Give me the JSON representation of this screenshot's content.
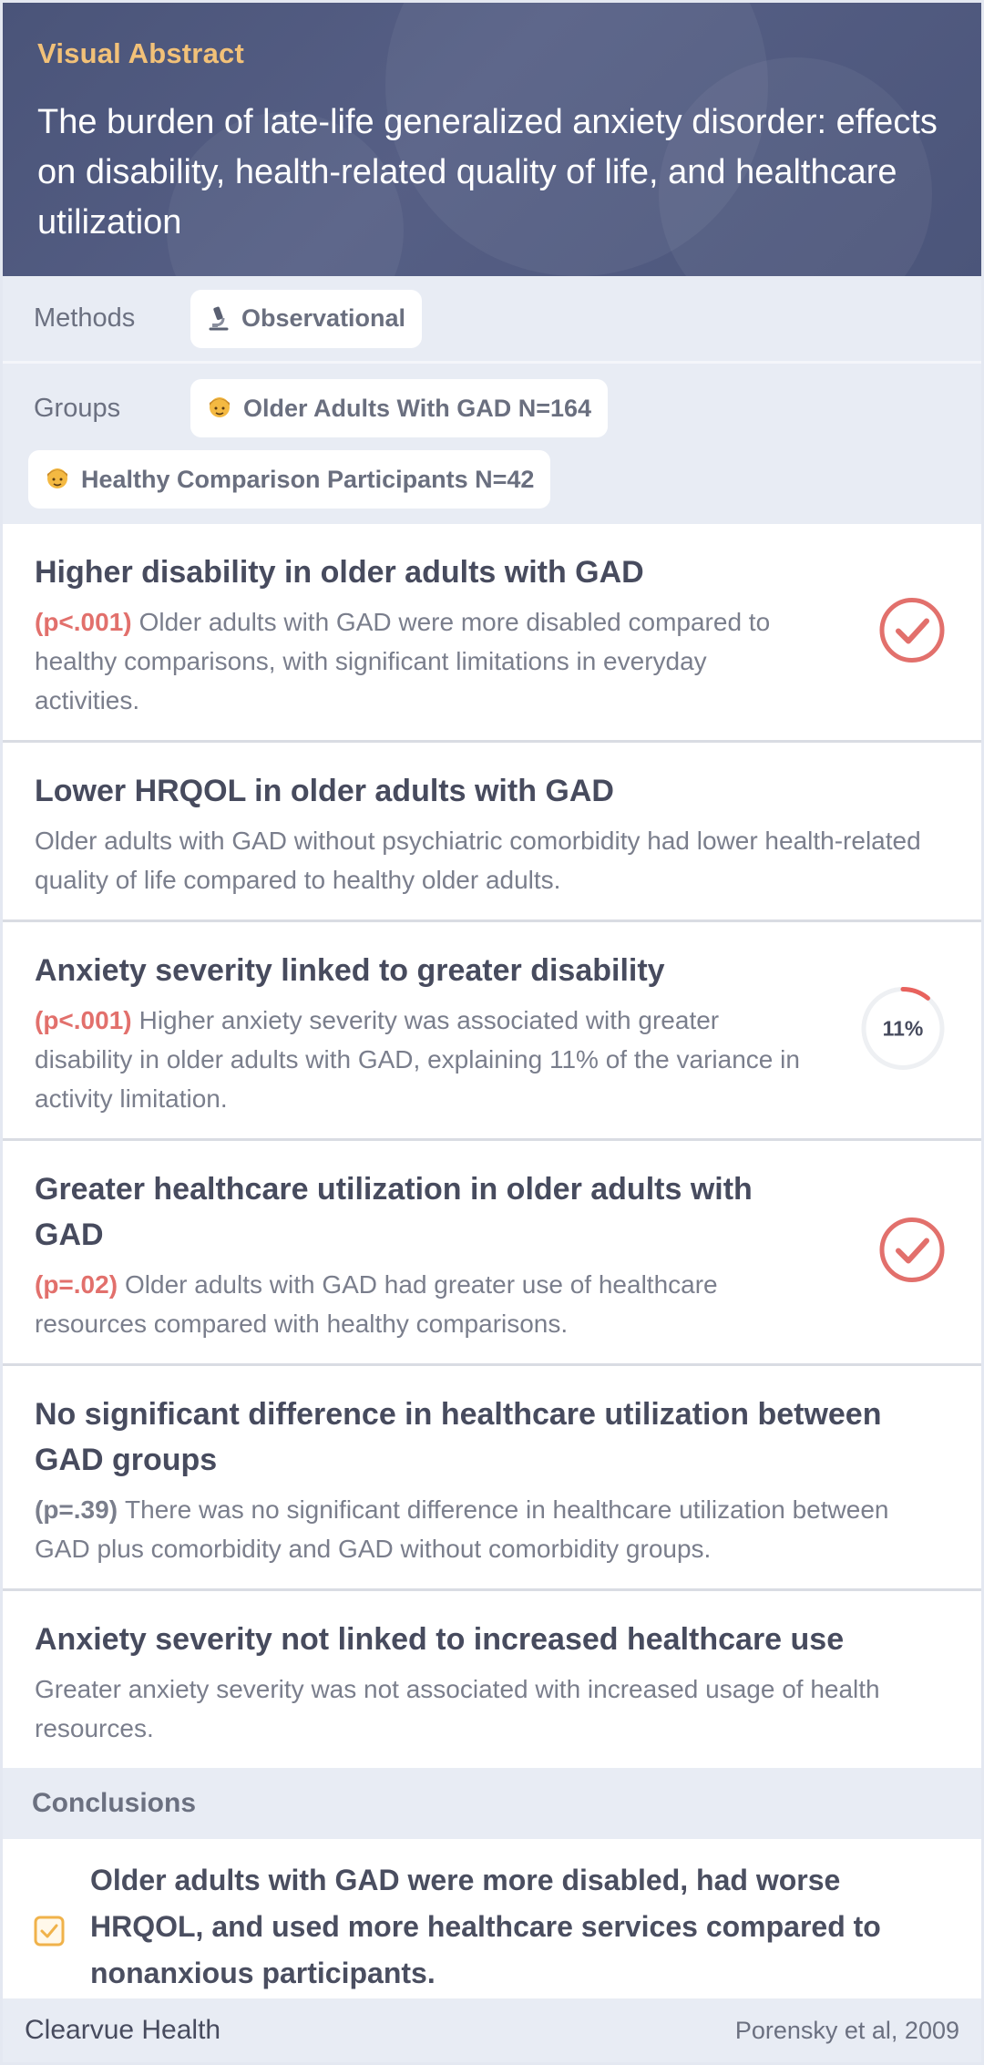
{
  "header": {
    "label": "Visual Abstract",
    "title": "The burden of late-life generalized anxiety disorder: effects on disability, health-related quality of life, and healthcare utilization"
  },
  "methods": {
    "label": "Methods",
    "chip": {
      "icon": "microscope-icon",
      "text": "Observational"
    }
  },
  "groups": {
    "label": "Groups",
    "chips": [
      {
        "icon": "person-icon",
        "text": "Older Adults With GAD N=164"
      },
      {
        "icon": "person-icon",
        "text": "Healthy Comparison Participants N=42"
      }
    ]
  },
  "findings": [
    {
      "title": "Higher disability in older adults with GAD",
      "pvalue": "(p<.001)",
      "text": "Older adults with GAD were more disabled compared to healthy comparisons, with significant limitations in everyday activities.",
      "indicator": "check-circle-icon"
    },
    {
      "title": "Lower HRQOL in older adults with GAD",
      "pvalue": "",
      "text": "Older adults with GAD without psychiatric comorbidity had lower health-related quality of life compared to healthy older adults.",
      "indicator": ""
    },
    {
      "title": "Anxiety severity linked to greater disability",
      "pvalue": "(p<.001)",
      "text": "Higher anxiety severity was associated with greater disability in older adults with GAD, explaining 11% of the variance in activity limitation.",
      "indicator": "percent-ring",
      "percent_label": "11%",
      "percent_value": 0.11
    },
    {
      "title": "Greater healthcare utilization in older adults with GAD",
      "pvalue": "(p=.02)",
      "text": "Older adults with GAD had greater use of healthcare resources compared with healthy comparisons.",
      "indicator": "check-circle-icon"
    },
    {
      "title": "No significant difference in healthcare utilization between GAD groups",
      "pvalue": "(p=.39)",
      "text": "There was no significant difference in healthcare utilization between GAD plus comorbidity and GAD without comorbidity groups.",
      "indicator": ""
    },
    {
      "title": "Anxiety severity not linked to increased healthcare use",
      "pvalue": "",
      "text": "Greater anxiety severity was not associated with increased usage of health resources.",
      "indicator": ""
    }
  ],
  "conclusions": {
    "label": "Conclusions",
    "text": "Older adults with GAD were more disabled, had worse HRQOL, and used more healthcare services compared to nonanxious participants."
  },
  "footer": {
    "brand": "Clearvue Health",
    "citation": "Porensky et al, 2009"
  },
  "colors": {
    "header_bg": "#4f5980",
    "label_accent": "#f2c178",
    "significant": "#e2706c",
    "panel_bg": "#e8ecf4",
    "checkbox": "#f0b24a"
  }
}
